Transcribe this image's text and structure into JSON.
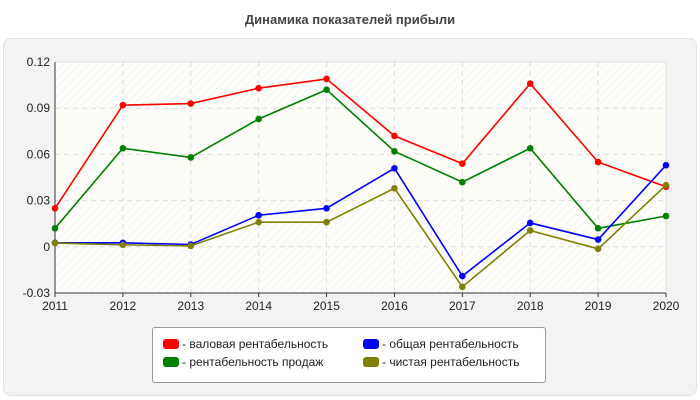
{
  "chart_data": {
    "type": "line",
    "title": "Динамика показателей прибыли",
    "x": [
      "2011",
      "2012",
      "2013",
      "2014",
      "2015",
      "2016",
      "2017",
      "2018",
      "2019",
      "2020"
    ],
    "ylim": [
      -0.03,
      0.12
    ],
    "yticks": [
      "-0.03",
      "0",
      "0.03",
      "0.06",
      "0.09",
      "0.12"
    ],
    "ytick_values": [
      -0.03,
      0,
      0.03,
      0.06,
      0.09,
      0.12
    ],
    "grid": true,
    "legend_placement": "bottom",
    "series": [
      {
        "name": "- валовая рентабельность",
        "color": "#ff0000",
        "values": [
          0.025,
          0.092,
          0.093,
          0.103,
          0.109,
          0.072,
          0.054,
          0.106,
          0.055,
          0.039
        ]
      },
      {
        "name": "- общая рентабельность",
        "color": "#0000ff",
        "values": [
          0.0026,
          0.0026,
          0.0015,
          0.0205,
          0.025,
          0.051,
          -0.019,
          0.0155,
          0.0047,
          0.053
        ]
      },
      {
        "name": "- рентабельность продаж",
        "color": "#008000",
        "values": [
          0.012,
          0.064,
          0.058,
          0.083,
          0.102,
          0.062,
          0.042,
          0.064,
          0.012,
          0.02
        ]
      },
      {
        "name": "- чистая рентабельность",
        "color": "#808000",
        "values": [
          0.0024,
          0.0013,
          0.0006,
          0.016,
          0.016,
          0.038,
          -0.026,
          0.0106,
          -0.0013,
          0.04
        ]
      }
    ]
  }
}
